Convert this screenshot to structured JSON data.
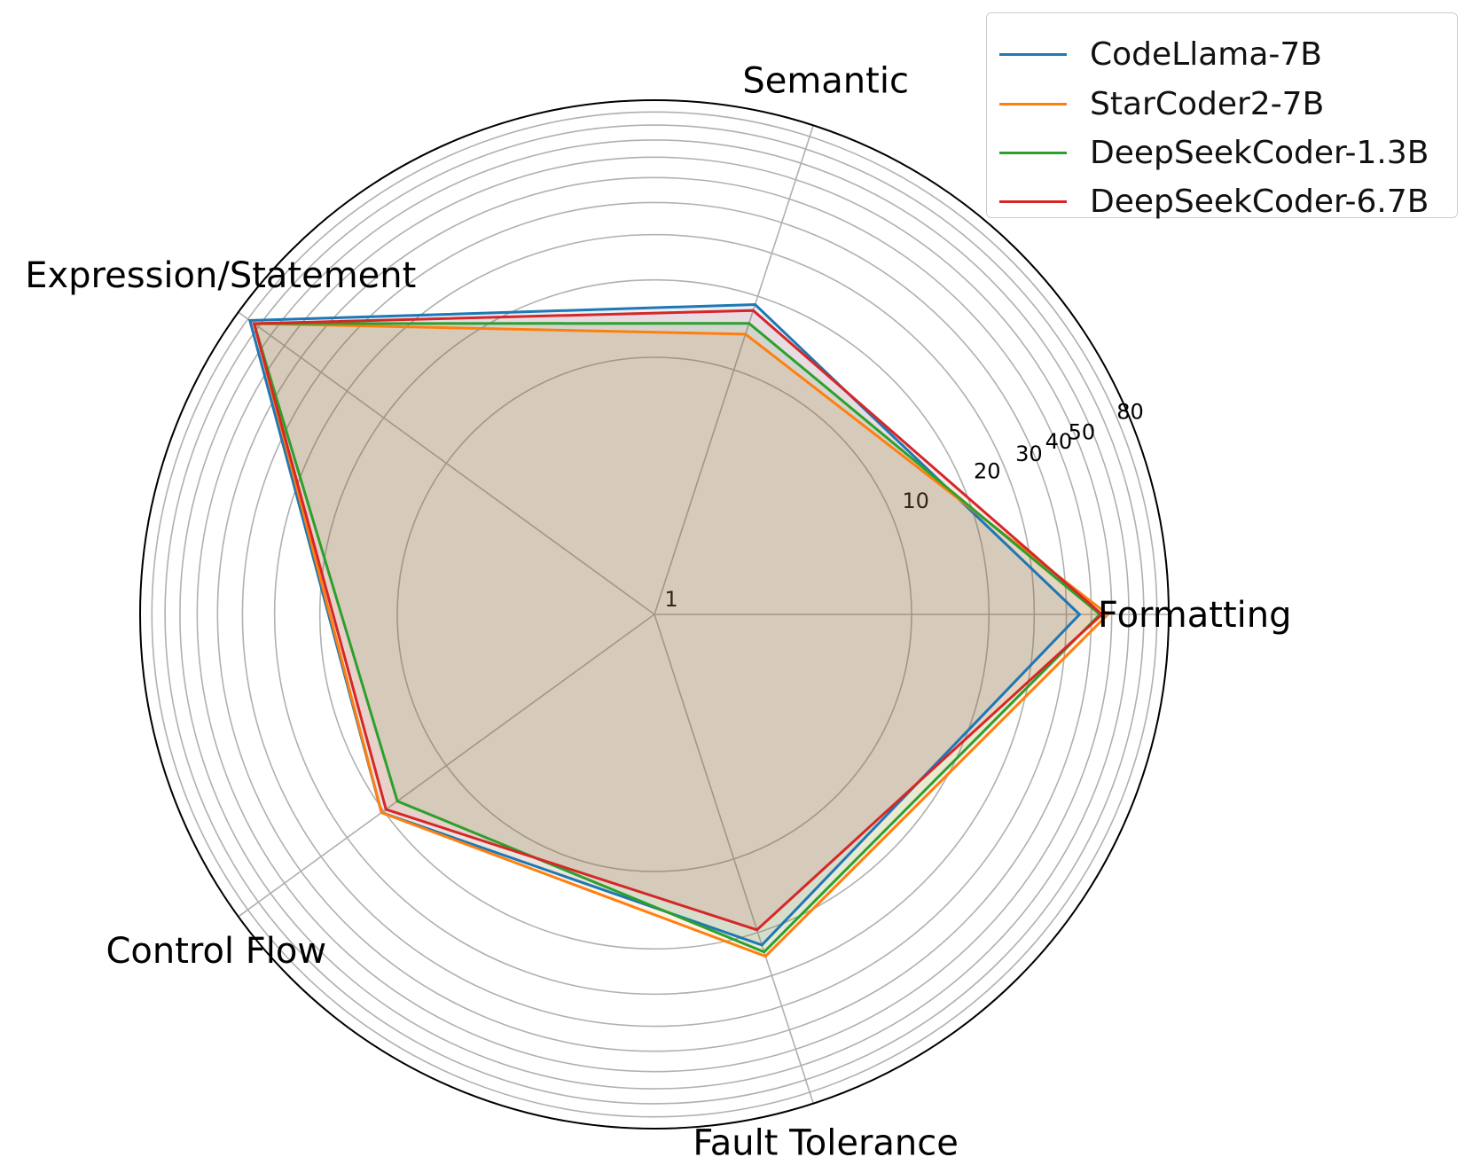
{
  "chart_data": {
    "type": "radar",
    "axes": [
      "Formatting",
      "Semantic",
      "Expression/Statement",
      "Control Flow",
      "Fault Tolerance"
    ],
    "radial_ticks": [
      "1",
      "10",
      "20",
      "30",
      "40",
      "50",
      "80"
    ],
    "radial_scale": "log",
    "rlim": [
      1,
      100
    ],
    "grid": true,
    "legend_position": "top-right",
    "series": [
      {
        "name": "CodeLlama-7B",
        "color": "#1f77b4",
        "values": [
          45,
          18.5,
          88,
          20.5,
          22.5
        ]
      },
      {
        "name": "StarCoder2-7B",
        "color": "#ff7f0e",
        "values": [
          58,
          14,
          84,
          20.5,
          25
        ]
      },
      {
        "name": "DeepSeekCoder-1.3B",
        "color": "#2ca02c",
        "values": [
          54,
          15.5,
          84,
          17.2,
          24
        ]
      },
      {
        "name": "DeepSeekCoder-6.7B",
        "color": "#d62728",
        "values": [
          55,
          17.5,
          84,
          19.5,
          19.5
        ]
      }
    ]
  }
}
